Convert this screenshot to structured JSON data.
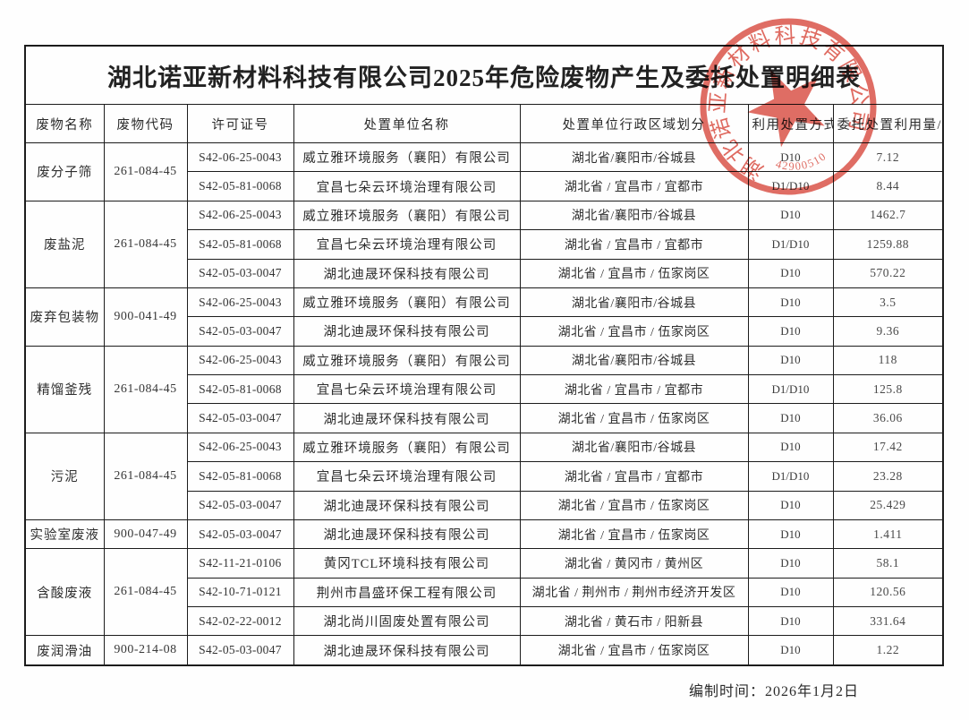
{
  "document": {
    "title": "湖北诺亚新材料科技有限公司2025年危险废物产生及委托处置明细表",
    "footer": "编制时间：2026年1月2日"
  },
  "table": {
    "headers": [
      "废物名称",
      "废物代码",
      "许可证号",
      "处置单位名称",
      "处置单位行政区域划分",
      "利用处置方式",
      "委托处置利用量/吨"
    ],
    "groups": [
      {
        "waste_name": "废分子筛",
        "waste_code": "261-084-45",
        "rows": [
          {
            "permit": "S42-06-25-0043",
            "company": "威立雅环境服务（襄阳）有限公司",
            "region": "湖北省/襄阳市/谷城县",
            "method": "D10",
            "amount": "7.12"
          },
          {
            "permit": "S42-05-81-0068",
            "company": "宜昌七朵云环境治理有限公司",
            "region": "湖北省 / 宜昌市 / 宜都市",
            "method": "D1/D10",
            "amount": "8.44"
          }
        ]
      },
      {
        "waste_name": "废盐泥",
        "waste_code": "261-084-45",
        "rows": [
          {
            "permit": "S42-06-25-0043",
            "company": "威立雅环境服务（襄阳）有限公司",
            "region": "湖北省/襄阳市/谷城县",
            "method": "D10",
            "amount": "1462.7"
          },
          {
            "permit": "S42-05-81-0068",
            "company": "宜昌七朵云环境治理有限公司",
            "region": "湖北省 / 宜昌市 / 宜都市",
            "method": "D1/D10",
            "amount": "1259.88"
          },
          {
            "permit": "S42-05-03-0047",
            "company": "湖北迪晟环保科技有限公司",
            "region": "湖北省 / 宜昌市 / 伍家岗区",
            "method": "D10",
            "amount": "570.22"
          }
        ]
      },
      {
        "waste_name": "废弃包装物",
        "waste_code": "900-041-49",
        "rows": [
          {
            "permit": "S42-06-25-0043",
            "company": "威立雅环境服务（襄阳）有限公司",
            "region": "湖北省/襄阳市/谷城县",
            "method": "D10",
            "amount": "3.5"
          },
          {
            "permit": "S42-05-03-0047",
            "company": "湖北迪晟环保科技有限公司",
            "region": "湖北省 / 宜昌市 / 伍家岗区",
            "method": "D10",
            "amount": "9.36"
          }
        ]
      },
      {
        "waste_name": "精馏釜残",
        "waste_code": "261-084-45",
        "rows": [
          {
            "permit": "S42-06-25-0043",
            "company": "威立雅环境服务（襄阳）有限公司",
            "region": "湖北省/襄阳市/谷城县",
            "method": "D10",
            "amount": "118"
          },
          {
            "permit": "S42-05-81-0068",
            "company": "宜昌七朵云环境治理有限公司",
            "region": "湖北省 / 宜昌市 / 宜都市",
            "method": "D1/D10",
            "amount": "125.8"
          },
          {
            "permit": "S42-05-03-0047",
            "company": "湖北迪晟环保科技有限公司",
            "region": "湖北省 / 宜昌市 / 伍家岗区",
            "method": "D10",
            "amount": "36.06"
          }
        ]
      },
      {
        "waste_name": "污泥",
        "waste_code": "261-084-45",
        "rows": [
          {
            "permit": "S42-06-25-0043",
            "company": "威立雅环境服务（襄阳）有限公司",
            "region": "湖北省/襄阳市/谷城县",
            "method": "D10",
            "amount": "17.42"
          },
          {
            "permit": "S42-05-81-0068",
            "company": "宜昌七朵云环境治理有限公司",
            "region": "湖北省 / 宜昌市 / 宜都市",
            "method": "D1/D10",
            "amount": "23.28"
          },
          {
            "permit": "S42-05-03-0047",
            "company": "湖北迪晟环保科技有限公司",
            "region": "湖北省 / 宜昌市 / 伍家岗区",
            "method": "D10",
            "amount": "25.429"
          }
        ]
      },
      {
        "waste_name": "实验室废液",
        "waste_code": "900-047-49",
        "rows": [
          {
            "permit": "S42-05-03-0047",
            "company": "湖北迪晟环保科技有限公司",
            "region": "湖北省 / 宜昌市 / 伍家岗区",
            "method": "D10",
            "amount": "1.411"
          }
        ]
      },
      {
        "waste_name": "含酸废液",
        "waste_code": "261-084-45",
        "rows": [
          {
            "permit": "S42-11-21-0106",
            "company": "黄冈TCL环境科技有限公司",
            "region": "湖北省 / 黄冈市 / 黄州区",
            "method": "D10",
            "amount": "58.1"
          },
          {
            "permit": "S42-10-71-0121",
            "company": "荆州市昌盛环保工程有限公司",
            "region": "湖北省 / 荆州市 / 荆州市经济开发区",
            "method": "D10",
            "amount": "120.56"
          },
          {
            "permit": "S42-02-22-0012",
            "company": "湖北尚川固废处置有限公司",
            "region": "湖北省 / 黄石市 / 阳新县",
            "method": "D10",
            "amount": "331.64"
          }
        ]
      },
      {
        "waste_name": "废润滑油",
        "waste_code": "900-214-08",
        "rows": [
          {
            "permit": "S42-05-03-0047",
            "company": "湖北迪晟环保科技有限公司",
            "region": "湖北省 / 宜昌市 / 伍家岗区",
            "method": "D10",
            "amount": "1.22"
          }
        ]
      }
    ]
  },
  "stamp": {
    "company": "湖北诺亚新材料科技有限公司",
    "number": "42900510",
    "color": "#d5392c"
  }
}
